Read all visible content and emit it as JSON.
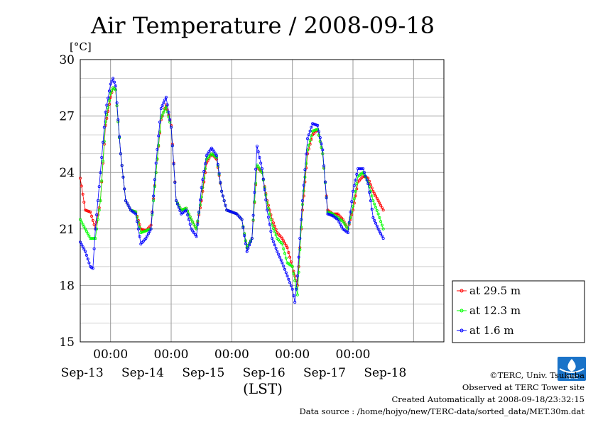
{
  "chart_data": {
    "type": "line",
    "title": "Air Temperature / 2008-09-18",
    "ylabel": "[°C]",
    "xlabel": "(LST)",
    "ylim": [
      15,
      30
    ],
    "yticks": [
      15,
      18,
      21,
      24,
      27,
      30
    ],
    "x_unit": "hours since Sep-12 12:00 LST",
    "xlim": [
      0,
      144
    ],
    "xticks": [
      {
        "value": 12,
        "time": "00:00",
        "day": "Sep-13"
      },
      {
        "value": 36,
        "time": "00:00",
        "day": "Sep-14"
      },
      {
        "value": 60,
        "time": "00:00",
        "day": "Sep-15"
      },
      {
        "value": 84,
        "time": "00:00",
        "day": "Sep-16"
      },
      {
        "value": 108,
        "time": "00:00",
        "day": "Sep-17"
      },
      {
        "value": 132,
        "time": "",
        "day": "Sep-18"
      }
    ],
    "grid": true,
    "legend_position": "right",
    "series": [
      {
        "name": "at 29.5 m",
        "color": "#ff0000",
        "points": [
          [
            0,
            23.7
          ],
          [
            2,
            22.0
          ],
          [
            4,
            21.9
          ],
          [
            6,
            21.0
          ],
          [
            8,
            22.5
          ],
          [
            10,
            26.5
          ],
          [
            12,
            28.0
          ],
          [
            13,
            28.5
          ],
          [
            14,
            28.4
          ],
          [
            16,
            25.0
          ],
          [
            18,
            22.5
          ],
          [
            20,
            22.0
          ],
          [
            22,
            21.9
          ],
          [
            24,
            21.0
          ],
          [
            26,
            20.9
          ],
          [
            28,
            21.2
          ],
          [
            30,
            24.0
          ],
          [
            32,
            26.8
          ],
          [
            34,
            27.6
          ],
          [
            36,
            26.5
          ],
          [
            38,
            22.5
          ],
          [
            40,
            22.0
          ],
          [
            42,
            22.1
          ],
          [
            44,
            21.5
          ],
          [
            46,
            21.0
          ],
          [
            48,
            22.5
          ],
          [
            50,
            24.5
          ],
          [
            52,
            25.0
          ],
          [
            54,
            24.7
          ],
          [
            56,
            23.0
          ],
          [
            58,
            22.0
          ],
          [
            60,
            21.9
          ],
          [
            62,
            21.8
          ],
          [
            64,
            21.5
          ],
          [
            66,
            20.0
          ],
          [
            68,
            20.5
          ],
          [
            70,
            24.3
          ],
          [
            72,
            24.0
          ],
          [
            74,
            22.5
          ],
          [
            76,
            21.5
          ],
          [
            78,
            20.8
          ],
          [
            80,
            20.5
          ],
          [
            82,
            20.0
          ],
          [
            84,
            19.0
          ],
          [
            86,
            18.0
          ],
          [
            88,
            22.0
          ],
          [
            90,
            25.0
          ],
          [
            92,
            26.0
          ],
          [
            94,
            26.3
          ],
          [
            96,
            25.0
          ],
          [
            98,
            22.0
          ],
          [
            100,
            21.8
          ],
          [
            102,
            21.8
          ],
          [
            104,
            21.5
          ],
          [
            106,
            21.0
          ],
          [
            108,
            22.0
          ],
          [
            110,
            23.5
          ],
          [
            112,
            23.8
          ],
          [
            114,
            23.7
          ],
          [
            116,
            23.0
          ],
          [
            118,
            22.5
          ],
          [
            120,
            22.0
          ]
        ]
      },
      {
        "name": "at 12.3 m",
        "color": "#00ff00",
        "points": [
          [
            0,
            21.5
          ],
          [
            2,
            21.0
          ],
          [
            4,
            20.5
          ],
          [
            6,
            20.5
          ],
          [
            8,
            22.5
          ],
          [
            10,
            26.7
          ],
          [
            12,
            28.2
          ],
          [
            13,
            28.5
          ],
          [
            14,
            28.4
          ],
          [
            16,
            25.0
          ],
          [
            18,
            22.5
          ],
          [
            20,
            22.0
          ],
          [
            22,
            21.9
          ],
          [
            24,
            20.8
          ],
          [
            26,
            20.9
          ],
          [
            28,
            21.0
          ],
          [
            30,
            24.0
          ],
          [
            32,
            26.9
          ],
          [
            34,
            27.5
          ],
          [
            36,
            26.4
          ],
          [
            38,
            22.5
          ],
          [
            40,
            22.0
          ],
          [
            42,
            22.1
          ],
          [
            44,
            21.5
          ],
          [
            46,
            21.0
          ],
          [
            48,
            22.7
          ],
          [
            50,
            24.7
          ],
          [
            52,
            25.0
          ],
          [
            54,
            24.8
          ],
          [
            56,
            23.0
          ],
          [
            58,
            22.0
          ],
          [
            60,
            21.9
          ],
          [
            62,
            21.8
          ],
          [
            64,
            21.5
          ],
          [
            66,
            20.0
          ],
          [
            68,
            20.5
          ],
          [
            70,
            24.4
          ],
          [
            72,
            24.0
          ],
          [
            74,
            22.4
          ],
          [
            76,
            21.2
          ],
          [
            78,
            20.5
          ],
          [
            80,
            20.2
          ],
          [
            82,
            19.2
          ],
          [
            84,
            19.0
          ],
          [
            86,
            17.5
          ],
          [
            88,
            22.3
          ],
          [
            90,
            25.2
          ],
          [
            92,
            26.2
          ],
          [
            94,
            26.3
          ],
          [
            96,
            25.0
          ],
          [
            98,
            21.9
          ],
          [
            100,
            21.8
          ],
          [
            102,
            21.6
          ],
          [
            104,
            21.4
          ],
          [
            106,
            21.0
          ],
          [
            108,
            22.2
          ],
          [
            110,
            23.8
          ],
          [
            112,
            24.0
          ],
          [
            114,
            23.5
          ],
          [
            116,
            22.5
          ],
          [
            118,
            21.8
          ],
          [
            120,
            21.0
          ]
        ]
      },
      {
        "name": "at 1.6 m",
        "color": "#0000ff",
        "points": [
          [
            0,
            20.3
          ],
          [
            2,
            19.8
          ],
          [
            4,
            19.0
          ],
          [
            5,
            18.9
          ],
          [
            6,
            21.0
          ],
          [
            8,
            24.0
          ],
          [
            10,
            27.2
          ],
          [
            12,
            28.7
          ],
          [
            13,
            29.0
          ],
          [
            14,
            28.6
          ],
          [
            16,
            25.0
          ],
          [
            18,
            22.5
          ],
          [
            20,
            22.0
          ],
          [
            22,
            21.8
          ],
          [
            24,
            20.2
          ],
          [
            26,
            20.5
          ],
          [
            28,
            21.0
          ],
          [
            30,
            24.5
          ],
          [
            32,
            27.4
          ],
          [
            34,
            28.0
          ],
          [
            36,
            26.4
          ],
          [
            38,
            22.5
          ],
          [
            40,
            21.8
          ],
          [
            42,
            22.0
          ],
          [
            44,
            21.0
          ],
          [
            46,
            20.6
          ],
          [
            48,
            23.2
          ],
          [
            50,
            24.9
          ],
          [
            52,
            25.3
          ],
          [
            54,
            24.9
          ],
          [
            56,
            23.0
          ],
          [
            58,
            22.0
          ],
          [
            60,
            21.9
          ],
          [
            62,
            21.8
          ],
          [
            64,
            21.5
          ],
          [
            66,
            19.8
          ],
          [
            68,
            20.5
          ],
          [
            70,
            25.4
          ],
          [
            72,
            24.2
          ],
          [
            74,
            22.0
          ],
          [
            76,
            20.5
          ],
          [
            78,
            19.8
          ],
          [
            80,
            19.2
          ],
          [
            82,
            18.5
          ],
          [
            84,
            17.8
          ],
          [
            85,
            17.1
          ],
          [
            86,
            18.5
          ],
          [
            88,
            22.5
          ],
          [
            90,
            25.8
          ],
          [
            92,
            26.6
          ],
          [
            94,
            26.5
          ],
          [
            96,
            25.2
          ],
          [
            98,
            21.8
          ],
          [
            100,
            21.7
          ],
          [
            102,
            21.5
          ],
          [
            104,
            21.0
          ],
          [
            106,
            20.8
          ],
          [
            108,
            23.0
          ],
          [
            110,
            24.2
          ],
          [
            112,
            24.2
          ],
          [
            114,
            23.4
          ],
          [
            116,
            21.6
          ],
          [
            118,
            21.0
          ],
          [
            120,
            20.5
          ]
        ]
      }
    ]
  },
  "credits": {
    "copyright": "©TERC, Univ. Tsukuba",
    "observed": "Observed at TERC Tower site",
    "created": "Created Automatically at 2008-09-18/23:32:15",
    "source": "Data source : /home/hojyo/new/TERC-data/sorted_data/MET.30m.dat",
    "logo_text": "TERC"
  }
}
